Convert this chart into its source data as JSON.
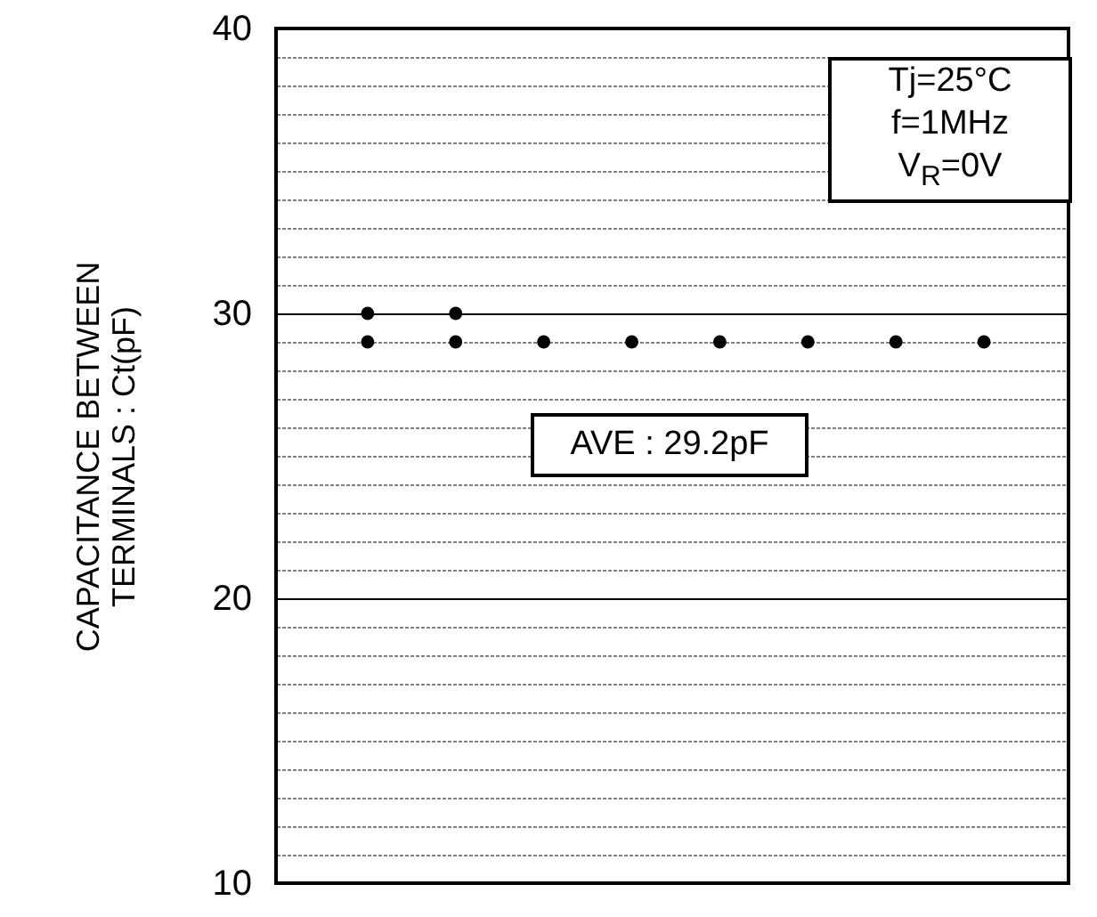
{
  "chart_data": {
    "type": "scatter",
    "ylabel": "CAPACITANCE BETWEEN TERMINALS : Ct(pF)",
    "categories": [
      null,
      null,
      null,
      null,
      null,
      null,
      null,
      null
    ],
    "series": [
      {
        "color": "#000000",
        "values": [
          30,
          30,
          null,
          null,
          null,
          null,
          null,
          null
        ]
      },
      {
        "color": "#000000",
        "values": [
          29,
          29,
          29,
          29,
          29,
          29,
          29,
          29
        ]
      }
    ],
    "ylim": [
      10,
      40
    ],
    "yticks": [
      10,
      {
        "value": 11,
        "label": null
      },
      {
        "value": 12,
        "label": null
      },
      {
        "value": 13,
        "label": null
      },
      {
        "value": 14,
        "label": null
      },
      {
        "value": 15,
        "label": null
      },
      {
        "value": 16,
        "label": null
      },
      {
        "value": 17,
        "label": null
      },
      {
        "value": 18,
        "label": null
      },
      {
        "value": 19,
        "label": null
      },
      20,
      {
        "value": 21,
        "label": null
      },
      {
        "value": 22,
        "label": null
      },
      {
        "value": 23,
        "label": null
      },
      {
        "value": 24,
        "label": null
      },
      {
        "value": 25,
        "label": null
      },
      {
        "value": 26,
        "label": null
      },
      {
        "value": 27,
        "label": null
      },
      {
        "value": 28,
        "label": null
      },
      {
        "value": 29,
        "label": null
      },
      30,
      {
        "value": 31,
        "label": null
      },
      {
        "value": 32,
        "label": null
      },
      {
        "value": 33,
        "label": null
      },
      {
        "value": 34,
        "label": null
      },
      {
        "value": 35,
        "label": null
      },
      {
        "value": 36,
        "label": null
      },
      {
        "value": 37,
        "label": null
      },
      {
        "value": 38,
        "label": null
      },
      {
        "value": 39,
        "label": null
      },
      40
    ],
    "grid": "y",
    "marker": "circle",
    "annotations": [
      "Tj=25°C",
      "f=1MHz",
      "V$_{R}$=0V",
      "AVE : 29.2pF"
    ]
  }
}
